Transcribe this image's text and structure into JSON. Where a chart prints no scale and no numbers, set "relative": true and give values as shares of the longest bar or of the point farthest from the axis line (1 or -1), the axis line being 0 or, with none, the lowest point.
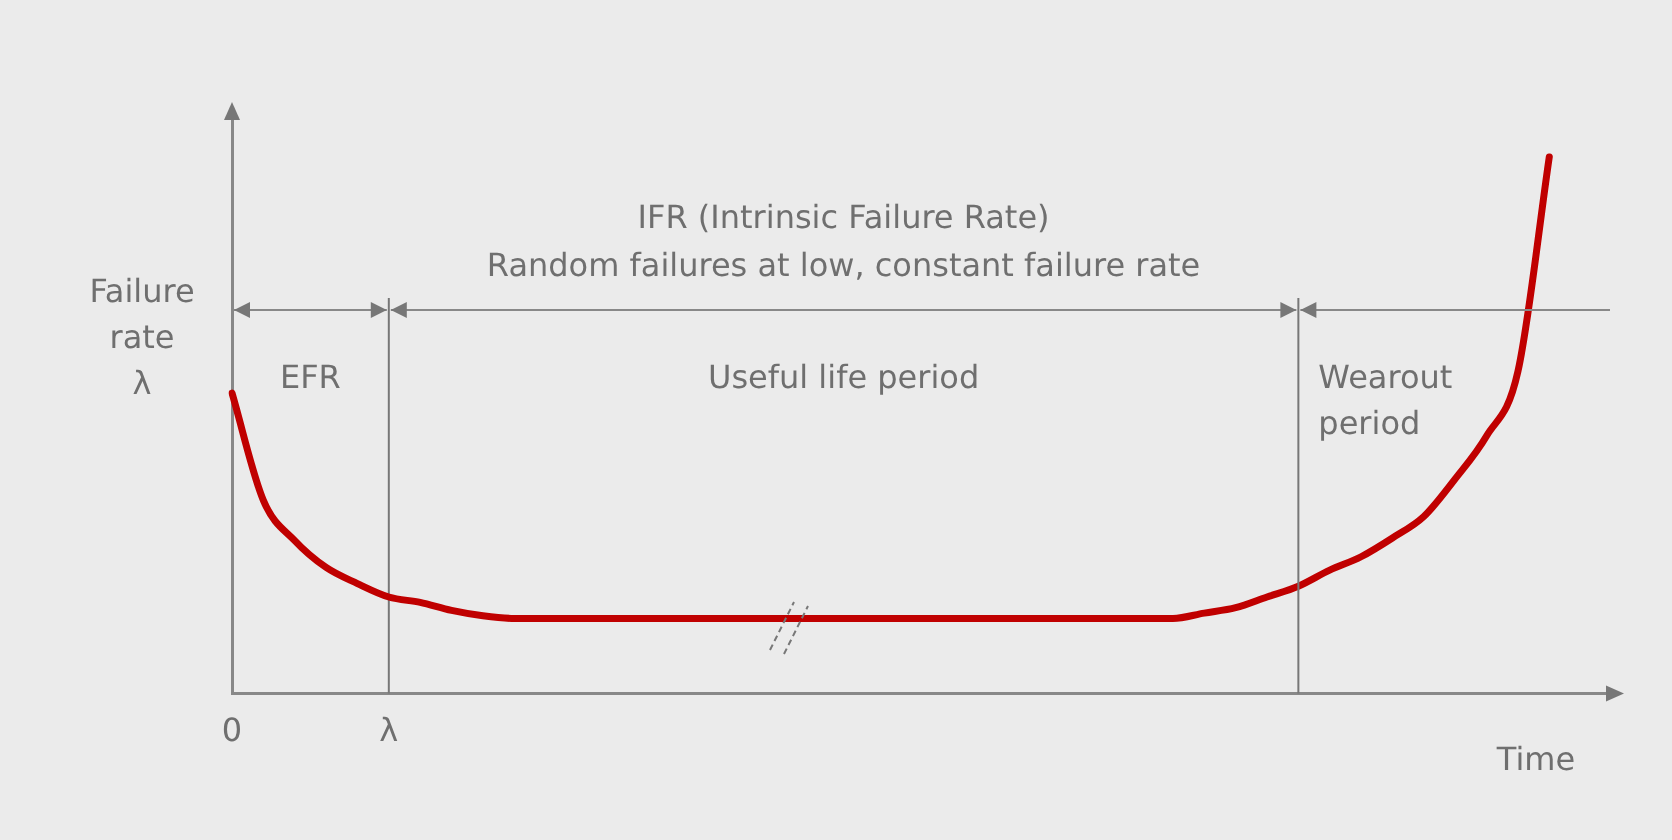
{
  "chart_data": {
    "type": "line",
    "title": "IFR (Intrinsic Failure Rate)\nRandom failures at low, constant failure rate",
    "xlabel": "Time",
    "ylabel": "Failure\nrate\nλ",
    "relative": true,
    "categories": [
      "0",
      null,
      null,
      null,
      null,
      "λ",
      null,
      null,
      null,
      null,
      null,
      null,
      null,
      null,
      null,
      null,
      null,
      null,
      null,
      null,
      null,
      null,
      null,
      null,
      null,
      null,
      null,
      null,
      null,
      null,
      null,
      null,
      null,
      null,
      null,
      null,
      null,
      null,
      null,
      null,
      null,
      null,
      null,
      null,
      null
    ],
    "series": [
      {
        "color": "#c00000",
        "values": [
          0.56,
          0.36,
          0.285,
          0.235,
          0.205,
          0.18,
          0.17,
          0.155,
          0.145,
          0.14,
          0.14,
          0.14,
          0.14,
          0.14,
          0.14,
          0.14,
          0.14,
          0.14,
          0.14,
          0.14,
          0.14,
          0.14,
          0.14,
          0.14,
          0.14,
          0.14,
          0.14,
          0.14,
          0.14,
          0.14,
          0.14,
          0.15,
          0.16,
          0.18,
          0.2,
          0.23,
          0.255,
          0.29,
          0.33,
          0.4,
          0.48,
          0.6,
          1,
          null,
          null
        ]
      }
    ],
    "annotations": [
      "EFR",
      "Useful life period",
      "Wearout\nperiod"
    ],
    "grid": "x",
    "legend": false,
    "marker": "none",
    "line_style": "solid"
  }
}
